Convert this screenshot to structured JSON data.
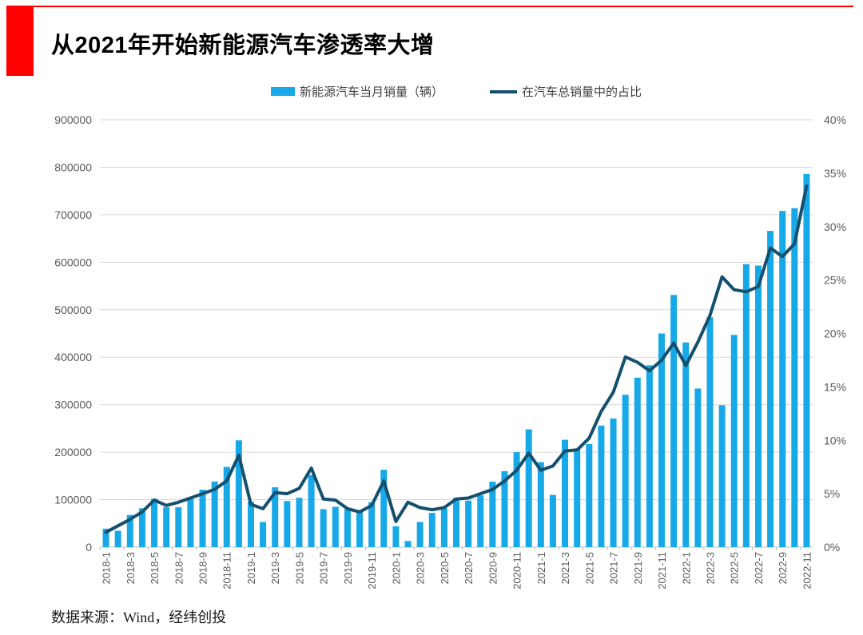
{
  "title": "从2021年开始新能源汽车渗透率大增",
  "source": "数据来源：Wind，经纬创投",
  "legend": [
    {
      "label": "新能源汽车当月销量（辆）",
      "type": "bar"
    },
    {
      "label": "在汽车总销量中的占比",
      "type": "line"
    }
  ],
  "colors": {
    "accent_red": "#FF0000",
    "bar": "#17A8E8",
    "line": "#14506E",
    "grid": "#D9D9D9",
    "axis_line": "#BFBFBF",
    "tick_text": "#595959"
  },
  "chart_data": {
    "type": "bar+line",
    "title": "从2021年开始新能源汽车渗透率大增",
    "categories": [
      "2018-1",
      "2018-2",
      "2018-3",
      "2018-4",
      "2018-5",
      "2018-6",
      "2018-7",
      "2018-8",
      "2018-9",
      "2018-10",
      "2018-11",
      "2018-12",
      "2019-1",
      "2019-2",
      "2019-3",
      "2019-4",
      "2019-5",
      "2019-6",
      "2019-7",
      "2019-8",
      "2019-9",
      "2019-10",
      "2019-11",
      "2019-12",
      "2020-1",
      "2020-2",
      "2020-3",
      "2020-4",
      "2020-5",
      "2020-6",
      "2020-7",
      "2020-8",
      "2020-9",
      "2020-10",
      "2020-11",
      "2020-12",
      "2021-1",
      "2021-2",
      "2021-3",
      "2021-4",
      "2021-5",
      "2021-6",
      "2021-7",
      "2021-8",
      "2021-9",
      "2021-10",
      "2021-11",
      "2021-12",
      "2022-1",
      "2022-2",
      "2022-3",
      "2022-4",
      "2022-5",
      "2022-6",
      "2022-7",
      "2022-8",
      "2022-9",
      "2022-10",
      "2022-11"
    ],
    "series": [
      {
        "name": "新能源汽车当月销量（辆）",
        "type": "bar",
        "axis": "left",
        "values": [
          38900,
          34400,
          67800,
          81900,
          102000,
          84000,
          84000,
          101000,
          121000,
          138000,
          169000,
          225000,
          95700,
          52900,
          126000,
          97000,
          104000,
          152000,
          80000,
          85000,
          80000,
          75000,
          95000,
          163000,
          44000,
          12900,
          53000,
          72000,
          82000,
          104000,
          98000,
          109000,
          138000,
          160000,
          200000,
          248000,
          179000,
          110000,
          226000,
          206000,
          217000,
          256000,
          271000,
          321000,
          357000,
          383000,
          450000,
          531000,
          431000,
          334000,
          484000,
          299000,
          447000,
          596000,
          593000,
          666000,
          708000,
          714000,
          786000
        ]
      },
      {
        "name": "在汽车总销量中的占比",
        "type": "line",
        "axis": "right",
        "unit": "%",
        "values": [
          1.4,
          2.0,
          2.6,
          3.3,
          4.4,
          3.9,
          4.2,
          4.6,
          5.0,
          5.4,
          6.2,
          8.6,
          4.0,
          3.6,
          5.1,
          5.0,
          5.5,
          7.4,
          4.5,
          4.4,
          3.6,
          3.3,
          3.9,
          6.2,
          2.4,
          4.2,
          3.7,
          3.5,
          3.7,
          4.5,
          4.6,
          5.0,
          5.4,
          6.2,
          7.2,
          8.8,
          7.2,
          7.6,
          9.0,
          9.1,
          10.2,
          12.7,
          14.5,
          17.8,
          17.3,
          16.5,
          17.5,
          19.1,
          17.0,
          19.2,
          21.7,
          25.3,
          24.1,
          23.9,
          24.4,
          28.0,
          27.2,
          28.4,
          33.8
        ]
      }
    ],
    "left_axis": {
      "min": 0,
      "max": 900000,
      "step": 100000,
      "labels": [
        "0",
        "100000",
        "200000",
        "300000",
        "400000",
        "500000",
        "600000",
        "700000",
        "800000",
        "900000"
      ]
    },
    "right_axis": {
      "min": 0,
      "max": 40,
      "step": 5,
      "labels": [
        "0%",
        "5%",
        "10%",
        "15%",
        "20%",
        "25%",
        "30%",
        "35%",
        "40%"
      ]
    },
    "x_label_every": 2,
    "grid": true,
    "legend_position": "top"
  }
}
